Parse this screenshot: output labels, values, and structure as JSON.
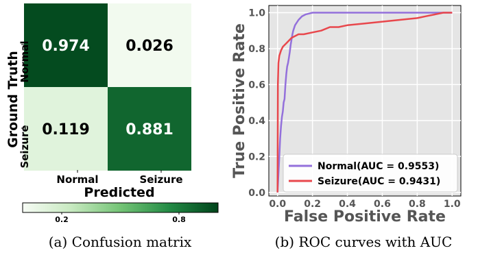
{
  "chart_data": [
    {
      "type": "heatmap",
      "xlabel": "Predicted",
      "ylabel": "Ground Truth",
      "x_categories": [
        "Normal",
        "Seizure"
      ],
      "y_categories": [
        "Normal",
        "Seizure"
      ],
      "values": [
        [
          0.974,
          0.026
        ],
        [
          0.119,
          0.881
        ]
      ],
      "value_labels": [
        [
          "0.974",
          "0.026"
        ],
        [
          "0.119",
          "0.881"
        ]
      ],
      "colorbar": {
        "range": [
          0,
          1
        ],
        "ticks": [
          0.2,
          0.8
        ],
        "tick_labels": [
          "0.2",
          "0.8"
        ]
      },
      "colormap": [
        "#f7fcf5",
        "#00441b"
      ],
      "caption": "(a) Confusion matrix"
    },
    {
      "type": "line",
      "xlabel": "False Positive Rate",
      "ylabel": "True Positive Rate",
      "xlim": [
        -0.05,
        1.05
      ],
      "ylim": [
        -0.02,
        1.04
      ],
      "xticks": [
        0.0,
        0.2,
        0.4,
        0.6,
        0.8,
        1.0
      ],
      "xtick_labels": [
        "0.0",
        "0.2",
        "0.4",
        "0.6",
        "0.8",
        "1.0"
      ],
      "yticks": [
        0.0,
        0.2,
        0.4,
        0.6,
        0.8,
        1.0
      ],
      "ytick_labels": [
        "0.0",
        "0.2",
        "0.4",
        "0.6",
        "0.8",
        "1.0"
      ],
      "grid": true,
      "legend": "lower-right",
      "series": [
        {
          "name": "Normal(AUC = 0.9553)",
          "color": "#9370db",
          "x": [
            0,
            0.005,
            0.01,
            0.015,
            0.02,
            0.025,
            0.03,
            0.035,
            0.04,
            0.045,
            0.05,
            0.055,
            0.06,
            0.065,
            0.07,
            0.075,
            0.08,
            0.085,
            0.09,
            0.1,
            0.12,
            0.14,
            0.16,
            0.18,
            0.2,
            0.25,
            0.3,
            0.4,
            0.6,
            0.8,
            1.0
          ],
          "y": [
            0,
            0.1,
            0.2,
            0.3,
            0.37,
            0.42,
            0.45,
            0.5,
            0.52,
            0.6,
            0.66,
            0.7,
            0.72,
            0.75,
            0.78,
            0.82,
            0.85,
            0.88,
            0.9,
            0.93,
            0.96,
            0.98,
            0.99,
            0.995,
            1.0,
            1.0,
            1.0,
            1.0,
            1.0,
            1.0,
            1.0
          ]
        },
        {
          "name": "Seizure(AUC = 0.9431)",
          "color": "#e8474c",
          "x": [
            0,
            0.002,
            0.005,
            0.01,
            0.02,
            0.03,
            0.05,
            0.08,
            0.1,
            0.12,
            0.15,
            0.2,
            0.25,
            0.3,
            0.35,
            0.4,
            0.5,
            0.6,
            0.7,
            0.8,
            0.85,
            0.9,
            0.95,
            1.0
          ],
          "y": [
            0,
            0.6,
            0.72,
            0.76,
            0.79,
            0.81,
            0.83,
            0.86,
            0.87,
            0.88,
            0.88,
            0.89,
            0.9,
            0.92,
            0.92,
            0.93,
            0.94,
            0.95,
            0.96,
            0.97,
            0.98,
            0.99,
            1.0,
            1.0
          ]
        }
      ],
      "caption": "(b) ROC curves with AUC"
    }
  ]
}
